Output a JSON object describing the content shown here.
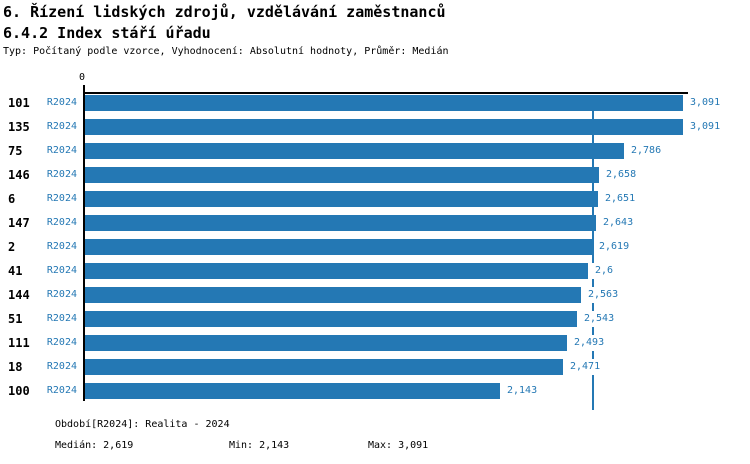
{
  "header": {
    "title1": "6. Řízení lidských zdrojů, vzdělávání zaměstnanců",
    "title2": "6.4.2 Index stáří úřadu",
    "subtitle": "Typ: Počítaný podle vzorce, Vyhodnocení: Absolutní hodnoty, Průměr: Medián"
  },
  "chart_data": {
    "type": "bar",
    "orientation": "horizontal",
    "title": "6.4.2 Index stáří úřadu",
    "categories": [
      "101",
      "135",
      "75",
      "146",
      "6",
      "147",
      "2",
      "41",
      "144",
      "51",
      "111",
      "18",
      "100"
    ],
    "series": [
      {
        "name": "R2024",
        "values": [
          3.091,
          3.091,
          2.786,
          2.658,
          2.651,
          2.643,
          2.619,
          2.6,
          2.563,
          2.543,
          2.493,
          2.471,
          2.143
        ],
        "value_labels": [
          "3,091",
          "3,091",
          "2,786",
          "2,658",
          "2,651",
          "2,643",
          "2,619",
          "2,6",
          "2,563",
          "2,543",
          "2,493",
          "2,471",
          "2,143"
        ]
      }
    ],
    "period_label": "R2024",
    "xlim": [
      0,
      3.091
    ],
    "axis_tick_labels": [
      "0"
    ],
    "median_value": 2.619,
    "grid": false,
    "legend": false
  },
  "colors": {
    "bar": "#2478b4",
    "blue_text": "#2478b4",
    "median_line": "#2478b4",
    "axis": "#000000"
  },
  "footer": {
    "period_line": "Období[R2024]: Realita - 2024",
    "median_label": "Medián: 2,619",
    "min_label": "Min: 2,143",
    "max_label": "Max: 3,091"
  }
}
